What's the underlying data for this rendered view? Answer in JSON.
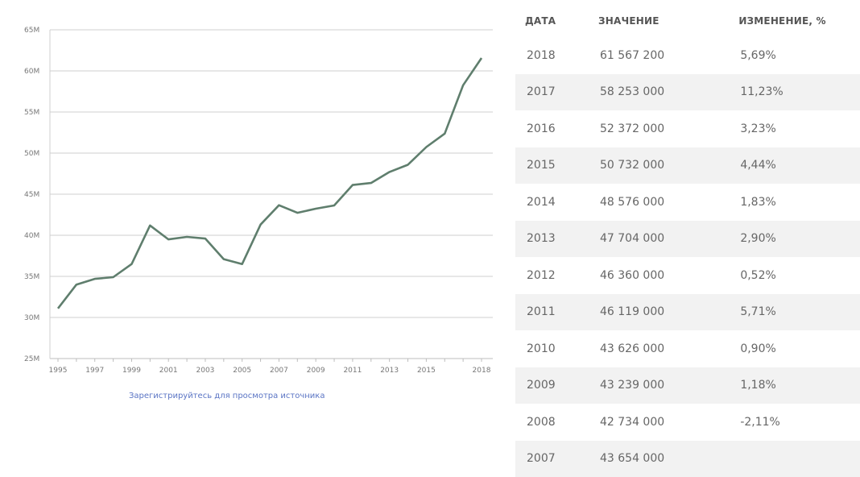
{
  "chart_data": {
    "type": "line",
    "title": "",
    "xlabel": "",
    "ylabel": "",
    "x": [
      1995,
      1996,
      1997,
      1998,
      1999,
      2000,
      2001,
      2002,
      2003,
      2004,
      2005,
      2006,
      2007,
      2008,
      2009,
      2010,
      2011,
      2012,
      2013,
      2014,
      2015,
      2016,
      2017,
      2018
    ],
    "series": [
      {
        "values": [
          31.1,
          34.0,
          34.7,
          34.9,
          36.5,
          41.2,
          39.5,
          39.8,
          39.6,
          37.1,
          36.5,
          41.3,
          43.654,
          42.734,
          43.239,
          43.626,
          46.119,
          46.36,
          47.704,
          48.576,
          50.732,
          52.372,
          58.253,
          61.5672
        ]
      }
    ],
    "ylim": [
      25,
      65
    ],
    "y_ticks": [
      25,
      30,
      35,
      40,
      45,
      50,
      55,
      60,
      65
    ],
    "y_tick_labels": [
      "25M",
      "30M",
      "35M",
      "40M",
      "45M",
      "50M",
      "55M",
      "60M",
      "65M"
    ],
    "x_ticks": [
      1995,
      1997,
      1999,
      2001,
      2003,
      2005,
      2007,
      2009,
      2011,
      2013,
      2015,
      2018
    ],
    "x_tick_labels": [
      "1995",
      "1997",
      "1999",
      "2001",
      "2003",
      "2005",
      "2007",
      "2009",
      "2011",
      "2013",
      "2015",
      "2018"
    ],
    "grid": "horizontal",
    "line_color": "#5f7e6d"
  },
  "source_link": "Зарегистрируйтесь для просмотра источника",
  "table": {
    "headers": [
      "ДАТА",
      "ЗНАЧЕНИЕ",
      "ИЗМЕНЕНИЕ, %"
    ],
    "rows": [
      [
        "2018",
        "61 567 200",
        "5,69%"
      ],
      [
        "2017",
        "58 253 000",
        "11,23%"
      ],
      [
        "2016",
        "52 372 000",
        "3,23%"
      ],
      [
        "2015",
        "50 732 000",
        "4,44%"
      ],
      [
        "2014",
        "48 576 000",
        "1,83%"
      ],
      [
        "2013",
        "47 704 000",
        "2,90%"
      ],
      [
        "2012",
        "46 360 000",
        "0,52%"
      ],
      [
        "2011",
        "46 119 000",
        "5,71%"
      ],
      [
        "2010",
        "43 626 000",
        "0,90%"
      ],
      [
        "2009",
        "43 239 000",
        "1,18%"
      ],
      [
        "2008",
        "42 734 000",
        "-2,11%"
      ],
      [
        "2007",
        "43 654 000",
        ""
      ]
    ]
  }
}
